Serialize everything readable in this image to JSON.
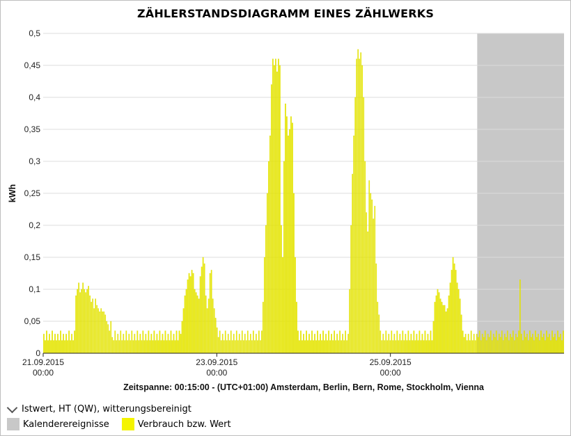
{
  "colors": {
    "bar": "#f4f400",
    "bar_stroke": "#d2d200",
    "calendar": "#c8c8c8",
    "grid": "#dcdcdc",
    "axis": "#222222"
  },
  "legend": {
    "group_label": "Istwert, HT (QW), witterungsbereinigt",
    "group_icon": "chevron-down-icon",
    "items": [
      {
        "label": "Kalenderereignisse",
        "color": "#c8c8c8"
      },
      {
        "label": "Verbrauch bzw. Wert",
        "color": "#f4f400"
      }
    ]
  },
  "chart_data": {
    "type": "bar",
    "title": "ZÄHLERSTANDSDIAGRAMM EINES ZÄHLWERKS",
    "xlabel": "Zeitspanne: 00:15:00 - (UTC+01:00) Amsterdam, Berlin, Bern, Rome, Stockholm, Vienna",
    "ylabel": "kWh",
    "ylim": [
      0,
      0.5
    ],
    "yticks": [
      "0",
      "0,05",
      "0,1",
      "0,15",
      "0,2",
      "0,25",
      "0,3",
      "0,35",
      "0,4",
      "0,45",
      "0,5"
    ],
    "x_range": [
      "2015-09-21 00:00",
      "2015-09-27 00:00"
    ],
    "xticks": [
      {
        "date": "21.09.2015",
        "time": "00:00"
      },
      {
        "date": "23.09.2015",
        "time": "00:00"
      },
      {
        "date": "25.09.2015",
        "time": "00:00"
      }
    ],
    "grid": true,
    "legend_position": "bottom-left",
    "calendar_events": [
      {
        "start": "2015-09-26 00:00",
        "end": "2015-09-27 00:00"
      }
    ],
    "series": [
      {
        "name": "Verbrauch bzw. Wert",
        "x_start": "2015-09-21 00:00",
        "values": [
          0.03,
          0.02,
          0.035,
          0.02,
          0.03,
          0.02,
          0.035,
          0.02,
          0.03,
          0.02,
          0.03,
          0.02,
          0.035,
          0.02,
          0.03,
          0.02,
          0.03,
          0.02,
          0.035,
          0.02,
          0.03,
          0.02,
          0.035,
          0.09,
          0.1,
          0.11,
          0.095,
          0.1,
          0.11,
          0.1,
          0.095,
          0.1,
          0.105,
          0.09,
          0.08,
          0.085,
          0.07,
          0.085,
          0.075,
          0.07,
          0.065,
          0.07,
          0.065,
          0.065,
          0.06,
          0.05,
          0.045,
          0.035,
          0.05,
          0.025,
          0.02,
          0.035,
          0.02,
          0.03,
          0.02,
          0.035,
          0.02,
          0.03,
          0.02,
          0.035,
          0.02,
          0.03,
          0.02,
          0.035,
          0.02,
          0.03,
          0.02,
          0.035,
          0.02,
          0.03,
          0.02,
          0.035,
          0.02,
          0.03,
          0.02,
          0.035,
          0.02,
          0.03,
          0.02,
          0.035,
          0.02,
          0.03,
          0.02,
          0.035,
          0.02,
          0.03,
          0.02,
          0.035,
          0.02,
          0.03,
          0.02,
          0.035,
          0.02,
          0.03,
          0.02,
          0.035,
          0.02,
          0.035,
          0.03,
          0.05,
          0.07,
          0.09,
          0.1,
          0.115,
          0.125,
          0.12,
          0.13,
          0.125,
          0.1,
          0.095,
          0.09,
          0.085,
          0.12,
          0.135,
          0.15,
          0.14,
          0.09,
          0.07,
          0.085,
          0.125,
          0.13,
          0.085,
          0.07,
          0.055,
          0.04,
          0.025,
          0.035,
          0.02,
          0.03,
          0.02,
          0.035,
          0.02,
          0.03,
          0.02,
          0.035,
          0.02,
          0.03,
          0.02,
          0.035,
          0.02,
          0.03,
          0.02,
          0.035,
          0.02,
          0.03,
          0.02,
          0.035,
          0.02,
          0.03,
          0.02,
          0.035,
          0.02,
          0.03,
          0.02,
          0.035,
          0.02,
          0.035,
          0.08,
          0.15,
          0.2,
          0.25,
          0.3,
          0.34,
          0.42,
          0.46,
          0.45,
          0.46,
          0.44,
          0.46,
          0.45,
          0.2,
          0.15,
          0.3,
          0.39,
          0.37,
          0.34,
          0.35,
          0.37,
          0.36,
          0.25,
          0.15,
          0.08,
          0.035,
          0.02,
          0.035,
          0.02,
          0.03,
          0.02,
          0.035,
          0.02,
          0.03,
          0.02,
          0.035,
          0.02,
          0.03,
          0.02,
          0.035,
          0.02,
          0.03,
          0.02,
          0.035,
          0.02,
          0.03,
          0.02,
          0.035,
          0.02,
          0.03,
          0.02,
          0.035,
          0.02,
          0.03,
          0.02,
          0.035,
          0.02,
          0.03,
          0.02,
          0.035,
          0.02,
          0.03,
          0.1,
          0.2,
          0.28,
          0.34,
          0.4,
          0.46,
          0.475,
          0.46,
          0.47,
          0.45,
          0.4,
          0.3,
          0.22,
          0.19,
          0.27,
          0.25,
          0.24,
          0.21,
          0.23,
          0.14,
          0.08,
          0.06,
          0.035,
          0.02,
          0.03,
          0.02,
          0.035,
          0.02,
          0.03,
          0.02,
          0.035,
          0.02,
          0.03,
          0.02,
          0.035,
          0.02,
          0.03,
          0.02,
          0.035,
          0.02,
          0.03,
          0.02,
          0.035,
          0.02,
          0.03,
          0.02,
          0.035,
          0.02,
          0.03,
          0.02,
          0.035,
          0.02,
          0.03,
          0.02,
          0.035,
          0.02,
          0.03,
          0.02,
          0.035,
          0.02,
          0.05,
          0.08,
          0.09,
          0.1,
          0.095,
          0.085,
          0.08,
          0.075,
          0.075,
          0.065,
          0.07,
          0.09,
          0.11,
          0.13,
          0.15,
          0.14,
          0.13,
          0.11,
          0.1,
          0.085,
          0.06,
          0.035,
          0.025,
          0.03,
          0.02,
          0.03,
          0.02,
          0.035,
          0.02,
          0.03,
          0.02,
          0.03,
          0.025,
          0.035,
          0.02,
          0.03,
          0.025,
          0.035,
          0.02,
          0.03,
          0.025,
          0.035,
          0.02,
          0.03,
          0.025,
          0.035,
          0.02,
          0.03,
          0.025,
          0.035,
          0.02,
          0.03,
          0.025,
          0.035,
          0.02,
          0.03,
          0.025,
          0.035,
          0.02,
          0.03,
          0.025,
          0.035,
          0.115,
          0.03,
          0.02,
          0.035,
          0.025,
          0.03,
          0.02,
          0.035,
          0.025,
          0.03,
          0.02,
          0.035,
          0.025,
          0.03,
          0.02,
          0.035,
          0.025,
          0.03,
          0.02,
          0.035,
          0.025,
          0.03,
          0.02,
          0.035,
          0.025,
          0.03,
          0.02,
          0.035,
          0.025,
          0.03,
          0.02,
          0.035
        ]
      }
    ]
  }
}
